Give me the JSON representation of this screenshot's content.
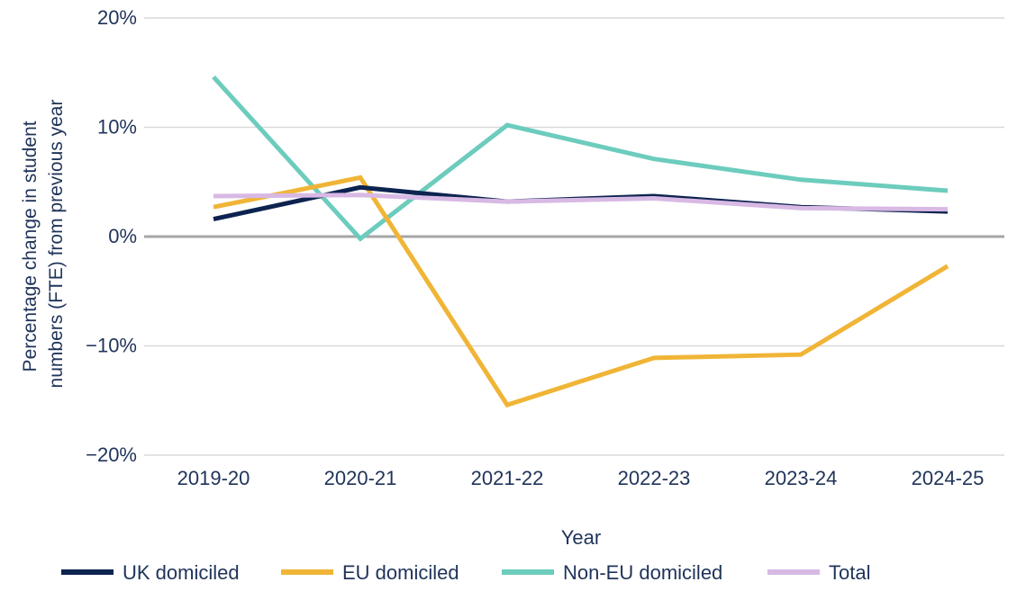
{
  "chart_data": {
    "type": "line",
    "categories": [
      "2019-20",
      "2020-21",
      "2021-22",
      "2022-23",
      "2023-24",
      "2024-25"
    ],
    "series": [
      {
        "name": "UK domiciled",
        "color": "#0d2350",
        "values": [
          1.6,
          4.5,
          3.2,
          3.7,
          2.7,
          2.3
        ]
      },
      {
        "name": "EU domiciled",
        "color": "#f0b537",
        "values": [
          2.7,
          5.4,
          -15.4,
          -11.1,
          -10.8,
          -2.7
        ]
      },
      {
        "name": "Non-EU domiciled",
        "color": "#6cccbd",
        "values": [
          14.6,
          -0.2,
          10.2,
          7.1,
          5.2,
          4.2
        ]
      },
      {
        "name": "Total",
        "color": "#d8b9e4",
        "values": [
          3.7,
          3.8,
          3.2,
          3.5,
          2.6,
          2.5
        ]
      }
    ],
    "ylim": [
      -20,
      20
    ],
    "yticks": [
      20,
      10,
      0,
      -10,
      -20
    ],
    "ytick_labels": [
      "20%",
      "10%",
      "0%",
      "−10%",
      "−20%"
    ],
    "xlabel": "Year",
    "ylabel_lines": [
      "Percentage change in student",
      "numbers (FTE) from previous year"
    ],
    "grid": true,
    "legend_position": "bottom",
    "colors": {
      "grid": "#d9d9d9",
      "zero_line": "#a6a6a6",
      "text": "#1f3359"
    }
  }
}
